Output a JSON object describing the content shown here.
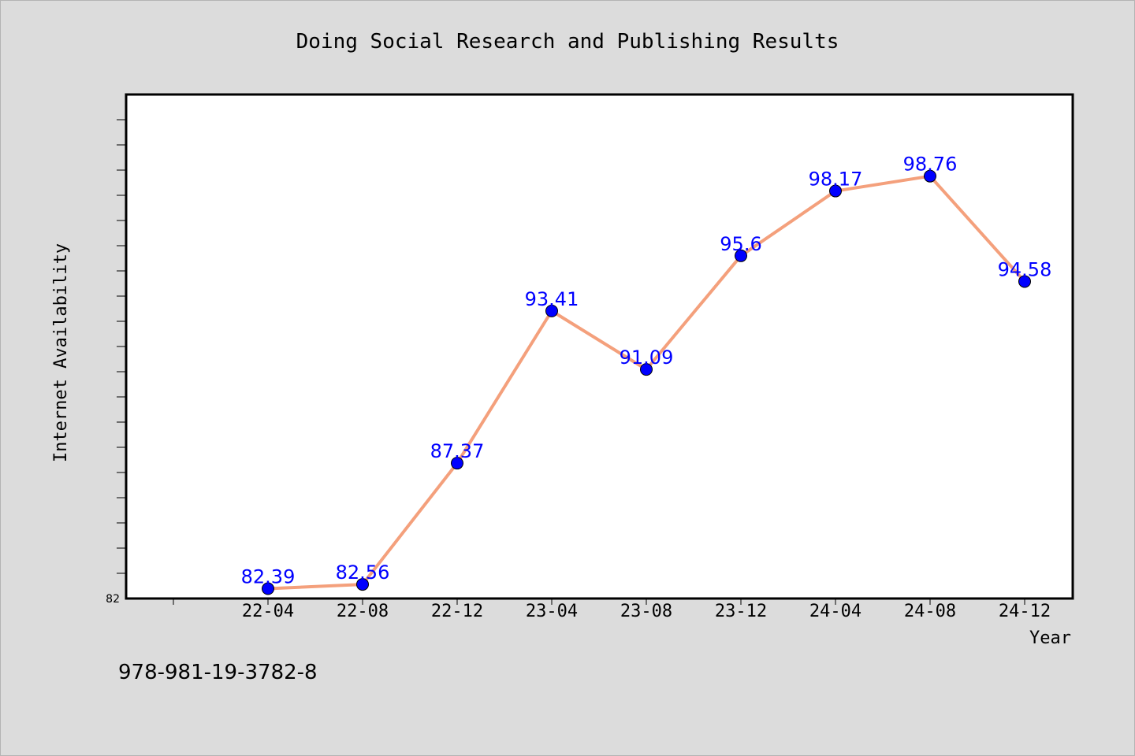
{
  "chart_data": {
    "type": "line",
    "title": "Doing Social Research and Publishing Results",
    "xlabel": "Year",
    "ylabel": "Internet Availability",
    "categories": [
      "22-04",
      "22-08",
      "22-12",
      "23-04",
      "23-08",
      "23-12",
      "24-04",
      "24-08",
      "24-12"
    ],
    "series": [
      {
        "values": [
          82.39,
          82.56,
          87.37,
          93.41,
          91.09,
          95.6,
          98.17,
          98.76,
          94.58
        ]
      }
    ],
    "data_labels": [
      "82.39",
      "82.56",
      "87.37",
      "93.41",
      "91.09",
      "95.6",
      "98.17",
      "98.76",
      "94.58"
    ],
    "ylim": [
      82,
      102
    ],
    "y_tick_labels": [
      "82"
    ],
    "grid": false,
    "line_color": "#f4a07c",
    "marker_color": "#0000ff",
    "label_color": "#0000ff"
  },
  "footer_text": "978-981-19-3782-8"
}
